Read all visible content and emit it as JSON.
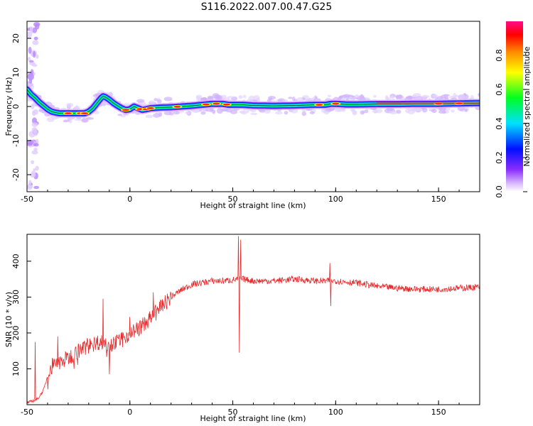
{
  "figure_title": "S116.2022.007.00.47.G25",
  "colors": {
    "snr_line": "#e8292b",
    "ridge_core": "#ff2020",
    "frame": "#000000",
    "colormap": [
      "#f4f0ff",
      "#c89cff",
      "#7a2cff",
      "#0018ff",
      "#00cfff",
      "#00ff30",
      "#ffff00",
      "#ff8000",
      "#ff0000",
      "#ff1090"
    ]
  },
  "chart_data": [
    {
      "type": "heatmap",
      "title": "",
      "xlabel": "Height of straight line (km)",
      "ylabel": "Frequency (Hz)",
      "xlim": [
        -50,
        170
      ],
      "ylim": [
        -25,
        25
      ],
      "xticks": [
        -50,
        0,
        50,
        100,
        150
      ],
      "yticks": [
        -20,
        -10,
        0,
        10,
        20
      ],
      "colorbar": {
        "label": "Normalized spectral amplitude",
        "range": [
          0,
          1
        ],
        "ticks": [
          "0.0",
          "0.2",
          "0.4",
          "0.6",
          "0.8"
        ]
      },
      "ridge": {
        "x": [
          -50,
          -48,
          -46,
          -44,
          -42,
          -40,
          -38,
          -36,
          -34,
          -32,
          -30,
          -28,
          -25,
          -22,
          -20,
          -18,
          -16,
          -14,
          -13,
          -12,
          -10,
          -8,
          -6,
          -4,
          -2,
          0,
          2,
          4,
          6,
          8,
          10,
          15,
          20,
          25,
          30,
          35,
          40,
          45,
          48,
          50,
          55,
          60,
          70,
          80,
          90,
          95,
          98,
          100,
          105,
          110,
          120,
          130,
          140,
          150,
          160,
          170
        ],
        "freq": [
          5,
          3.5,
          2.5,
          1.2,
          0.2,
          -0.8,
          -1.5,
          -1.8,
          -2,
          -2,
          -2,
          -2,
          -2,
          -2,
          -1.5,
          -0.5,
          1,
          2.5,
          3,
          2.8,
          2,
          1,
          0.2,
          -0.5,
          -1,
          -0.8,
          0,
          -0.5,
          -1,
          -0.8,
          -0.5,
          -0.3,
          -0.2,
          0,
          0.2,
          0.5,
          0.8,
          0.8,
          0.5,
          0.5,
          0.5,
          0.3,
          0.2,
          0.3,
          0.5,
          0.5,
          0.8,
          0.8,
          0.6,
          0.6,
          0.7,
          0.7,
          0.8,
          0.8,
          0.9,
          1.0
        ]
      }
    },
    {
      "type": "line",
      "title": "",
      "xlabel": "Height of straight line (km)",
      "ylabel": "SNR (10 * v/v)",
      "xlim": [
        -50,
        170
      ],
      "ylim": [
        0,
        475
      ],
      "xticks": [
        -50,
        0,
        50,
        100,
        150
      ],
      "yticks": [
        100,
        200,
        300,
        400
      ],
      "trend": {
        "x": [
          -50,
          -45,
          -42,
          -40,
          -38,
          -35,
          -30,
          -25,
          -20,
          -15,
          -10,
          -5,
          0,
          5,
          10,
          15,
          20,
          25,
          30,
          35,
          40,
          45,
          50,
          55,
          60,
          70,
          80,
          90,
          100,
          110,
          120,
          130,
          140,
          150,
          160,
          170
        ],
        "y": [
          5,
          15,
          40,
          80,
          105,
          115,
          130,
          150,
          165,
          175,
          170,
          175,
          200,
          215,
          240,
          270,
          300,
          320,
          335,
          340,
          345,
          345,
          348,
          350,
          345,
          345,
          350,
          345,
          345,
          340,
          330,
          325,
          322,
          322,
          325,
          328
        ]
      },
      "spikes": [
        {
          "x": 52.8,
          "y": 470
        },
        {
          "x": 53.2,
          "y": 145
        },
        {
          "x": 53.8,
          "y": 460
        },
        {
          "x": 97.2,
          "y": 395
        },
        {
          "x": 97.6,
          "y": 275
        },
        {
          "x": -13,
          "y": 295
        },
        {
          "x": -10,
          "y": 85
        },
        {
          "x": -35,
          "y": 190
        },
        {
          "x": -46,
          "y": 175
        }
      ]
    }
  ]
}
